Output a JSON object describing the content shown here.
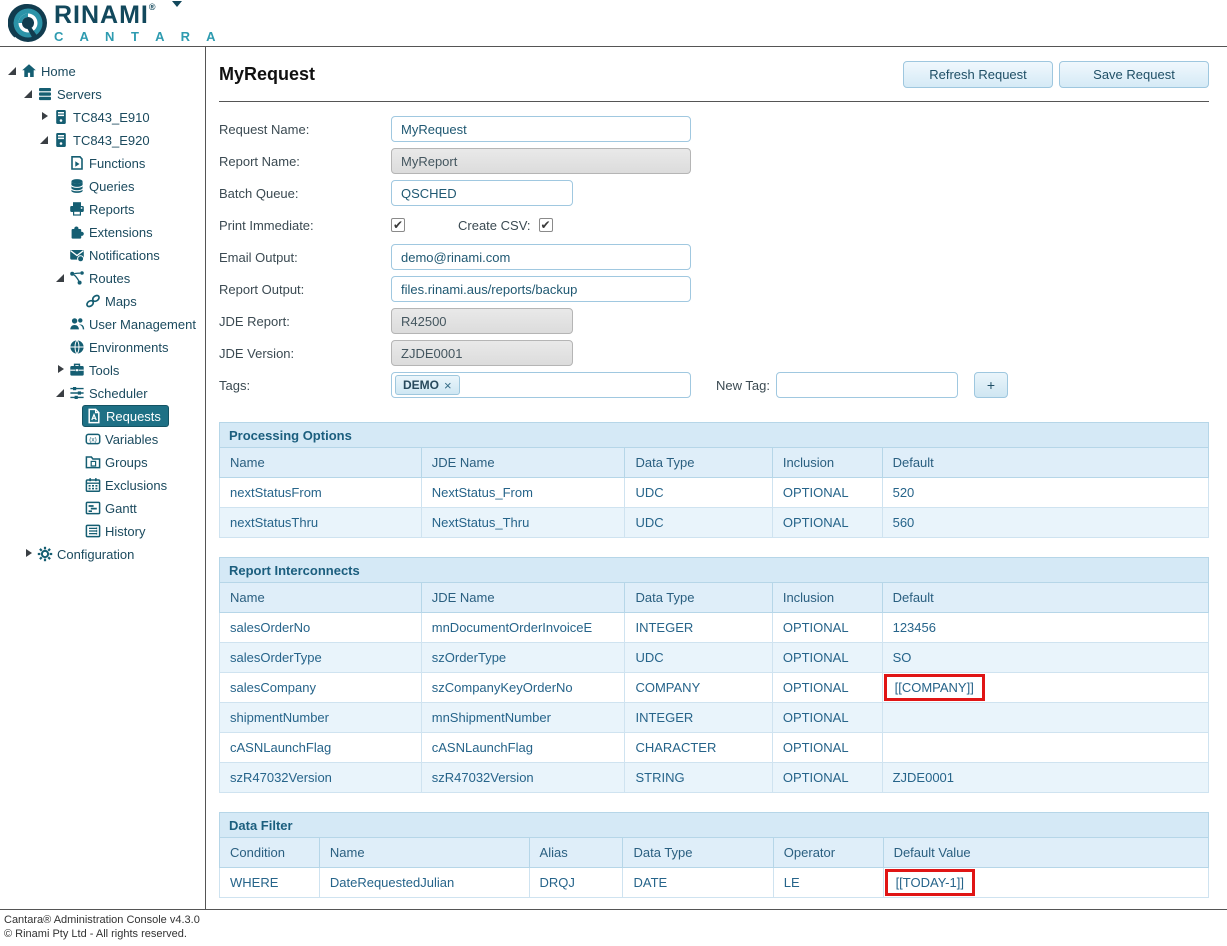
{
  "logo": {
    "brand": "RINAMI",
    "registered": "®",
    "sub_brand": "C A N T A R A"
  },
  "sidebar": {
    "tree": [
      {
        "label": "Home",
        "icon": "home",
        "level": 0,
        "arrow": "expanded"
      },
      {
        "label": "Servers",
        "icon": "servers",
        "level": 1,
        "arrow": "expanded"
      },
      {
        "label": "TC843_E910",
        "icon": "server",
        "level": 2,
        "arrow": "collapsed"
      },
      {
        "label": "TC843_E920",
        "icon": "server",
        "level": 2,
        "arrow": "expanded"
      },
      {
        "label": "Functions",
        "icon": "functions",
        "level": 3,
        "arrow": "none"
      },
      {
        "label": "Queries",
        "icon": "queries",
        "level": 3,
        "arrow": "none"
      },
      {
        "label": "Reports",
        "icon": "reports",
        "level": 3,
        "arrow": "none"
      },
      {
        "label": "Extensions",
        "icon": "extensions",
        "level": 3,
        "arrow": "none"
      },
      {
        "label": "Notifications",
        "icon": "notifications",
        "level": 3,
        "arrow": "none"
      },
      {
        "label": "Routes",
        "icon": "routes",
        "level": 3,
        "arrow": "expanded"
      },
      {
        "label": "Maps",
        "icon": "maps",
        "level": 4,
        "arrow": "none"
      },
      {
        "label": "User Management",
        "icon": "user-management",
        "level": 3,
        "arrow": "none"
      },
      {
        "label": "Environments",
        "icon": "environments",
        "level": 3,
        "arrow": "none"
      },
      {
        "label": "Tools",
        "icon": "tools",
        "level": 3,
        "arrow": "collapsed"
      },
      {
        "label": "Scheduler",
        "icon": "scheduler",
        "level": 3,
        "arrow": "expanded"
      },
      {
        "label": "Requests",
        "icon": "requests",
        "level": 4,
        "arrow": "none",
        "selected": true
      },
      {
        "label": "Variables",
        "icon": "variables",
        "level": 4,
        "arrow": "none"
      },
      {
        "label": "Groups",
        "icon": "groups",
        "level": 4,
        "arrow": "none"
      },
      {
        "label": "Exclusions",
        "icon": "exclusions",
        "level": 4,
        "arrow": "none"
      },
      {
        "label": "Gantt",
        "icon": "gantt",
        "level": 4,
        "arrow": "none"
      },
      {
        "label": "History",
        "icon": "history",
        "level": 4,
        "arrow": "none"
      },
      {
        "label": "Configuration",
        "icon": "configuration",
        "level": 1,
        "arrow": "collapsed"
      }
    ]
  },
  "header": {
    "title": "MyRequest",
    "refresh_label": "Refresh Request",
    "save_label": "Save Request"
  },
  "form": {
    "fields": [
      {
        "label": "Request Name:",
        "type": "text",
        "value": "MyRequest",
        "short": false,
        "disabled": false
      },
      {
        "label": "Report Name:",
        "type": "text",
        "value": "MyReport",
        "short": false,
        "disabled": true
      },
      {
        "label": "Batch Queue:",
        "type": "text",
        "value": "QSCHED",
        "short": true,
        "disabled": false
      },
      {
        "label": "Print Immediate:",
        "type": "checkbox",
        "checked": true,
        "second_label": "Create CSV:",
        "second_checked": true
      },
      {
        "label": "Email Output:",
        "type": "text",
        "value": "demo@rinami.com",
        "short": false,
        "disabled": false
      },
      {
        "label": "Report Output:",
        "type": "text",
        "value": "files.rinami.aus/reports/backup",
        "short": false,
        "disabled": false
      },
      {
        "label": "JDE Report:",
        "type": "text",
        "value": "R42500",
        "short": true,
        "disabled": true
      },
      {
        "label": "JDE Version:",
        "type": "text",
        "value": "ZJDE0001",
        "short": true,
        "disabled": true
      },
      {
        "label": "Tags:",
        "type": "tags",
        "tag": "DEMO",
        "remove_glyph": "×",
        "new_tag_label": "New Tag:",
        "new_tag_value": "",
        "add_label": "+"
      }
    ]
  },
  "tables": [
    {
      "title": "Processing Options",
      "columns": [
        "Name",
        "JDE Name",
        "Data Type",
        "Inclusion",
        "Default"
      ],
      "rows": [
        [
          "nextStatusFrom",
          "NextStatus_From",
          "UDC",
          "OPTIONAL",
          "520"
        ],
        [
          "nextStatusThru",
          "NextStatus_Thru",
          "UDC",
          "OPTIONAL",
          "560"
        ]
      ],
      "highlight_cells": []
    },
    {
      "title": "Report Interconnects",
      "columns": [
        "Name",
        "JDE Name",
        "Data Type",
        "Inclusion",
        "Default"
      ],
      "rows": [
        [
          "salesOrderNo",
          "mnDocumentOrderInvoiceE",
          "INTEGER",
          "OPTIONAL",
          "123456"
        ],
        [
          "salesOrderType",
          "szOrderType",
          "UDC",
          "OPTIONAL",
          "SO"
        ],
        [
          "salesCompany",
          "szCompanyKeyOrderNo",
          "COMPANY",
          "OPTIONAL",
          "[[COMPANY]]"
        ],
        [
          "shipmentNumber",
          "mnShipmentNumber",
          "INTEGER",
          "OPTIONAL",
          ""
        ],
        [
          "cASNLaunchFlag",
          "cASNLaunchFlag",
          "CHARACTER",
          "OPTIONAL",
          ""
        ],
        [
          "szR47032Version",
          "szR47032Version",
          "STRING",
          "OPTIONAL",
          "ZJDE0001"
        ]
      ],
      "highlight_cells": [
        {
          "row": 2,
          "col": 4
        }
      ]
    },
    {
      "title": "Data Filter",
      "columns": [
        "Condition",
        "Name",
        "Alias",
        "Data Type",
        "Operator",
        "Default Value"
      ],
      "rows": [
        [
          "WHERE",
          "DateRequestedJulian",
          "DRQJ",
          "DATE",
          "LE",
          "[[TODAY-1]]"
        ]
      ],
      "highlight_cells": [
        {
          "row": 0,
          "col": 5
        }
      ]
    }
  ],
  "footer": {
    "line1": "Cantara® Administration Console v4.3.0",
    "line2": "© Rinami Pty Ltd - All rights reserved."
  },
  "colors": {
    "brand_dark": "#12485c",
    "brand_teal": "#2e9bb0",
    "selected_item": "#1e7085",
    "table_header_bg": "#d5e9f6",
    "table_alt_row_bg": "#e9f4fb",
    "highlight_red": "#e01515"
  }
}
